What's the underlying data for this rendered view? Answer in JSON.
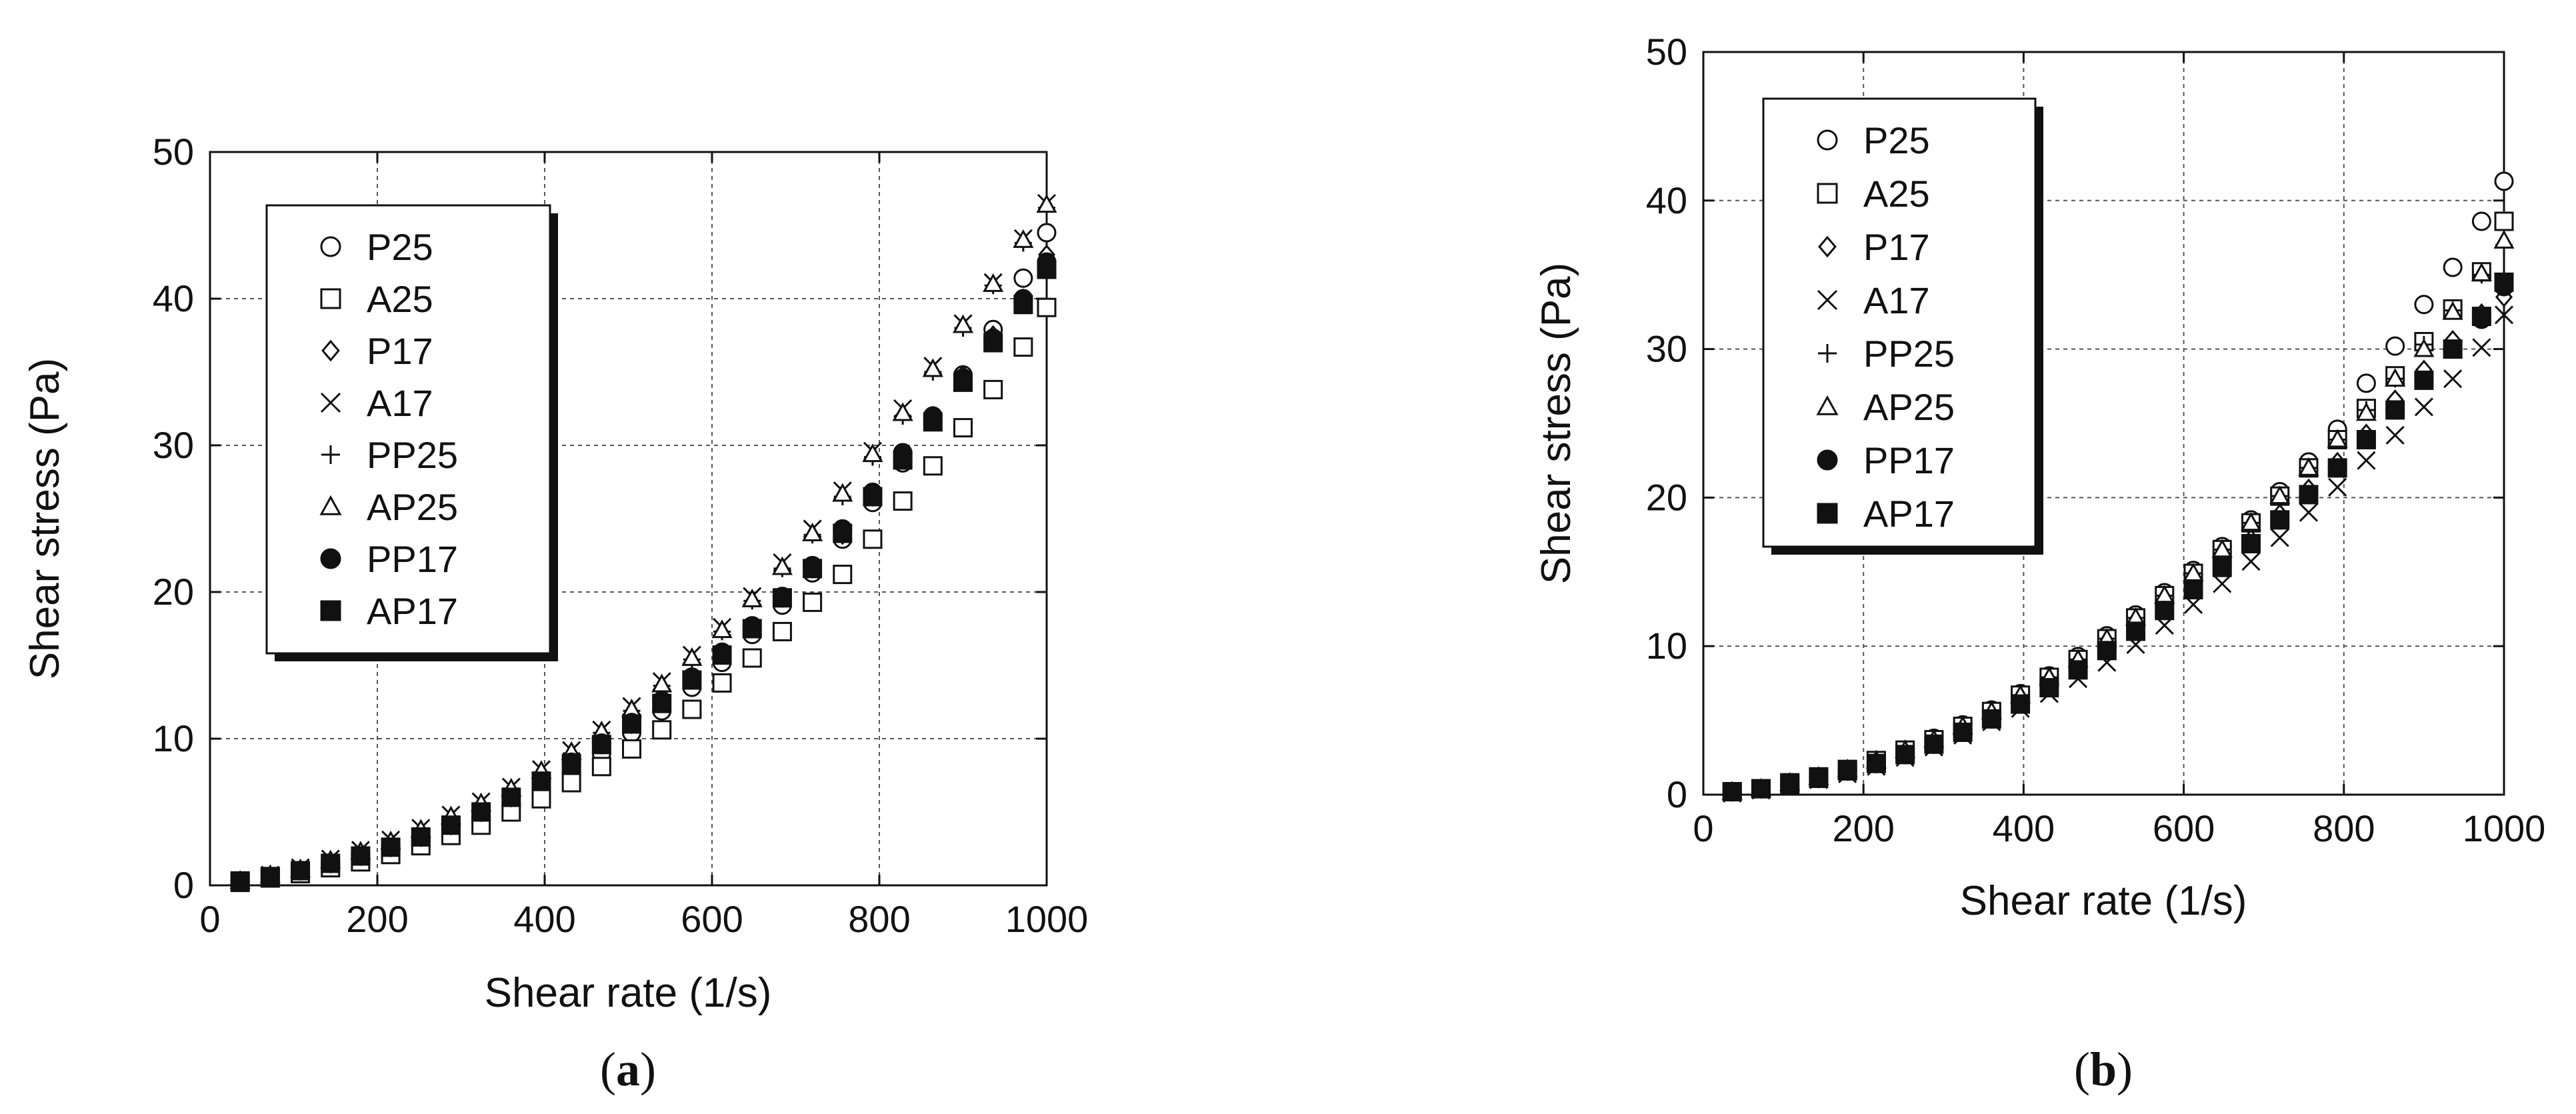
{
  "chart_data": [
    {
      "type": "scatter",
      "panel_label_open": "(",
      "panel_label_letter": "a",
      "panel_label_close": ")",
      "xlabel": "Shear rate (1/s)",
      "ylabel": "Shear stress (Pa)",
      "xlim": [
        0,
        1000
      ],
      "ylim": [
        0,
        50
      ],
      "xticks": [
        "0",
        "200",
        "400",
        "600",
        "800",
        "1000"
      ],
      "yticks": [
        "0",
        "10",
        "20",
        "30",
        "40",
        "50"
      ],
      "grid": true,
      "legend_position": "top-left",
      "x": [
        36,
        72,
        108,
        144,
        180,
        216,
        252,
        288,
        324,
        360,
        396,
        432,
        468,
        504,
        540,
        576,
        612,
        648,
        684,
        720,
        756,
        792,
        828,
        864,
        900,
        936,
        972,
        1000
      ],
      "series": [
        {
          "name": "P25",
          "marker": "circle-open",
          "values": [
            0.3,
            0.6,
            0.9,
            1.3,
            1.8,
            2.4,
            3.0,
            3.7,
            4.5,
            5.4,
            6.5,
            7.7,
            9.0,
            10.4,
            11.9,
            13.5,
            15.2,
            17.1,
            19.1,
            21.3,
            23.6,
            26.1,
            28.8,
            31.7,
            34.8,
            37.9,
            41.4,
            44.5
          ]
        },
        {
          "name": "A25",
          "marker": "square-open",
          "values": [
            0.2,
            0.5,
            0.8,
            1.2,
            1.6,
            2.1,
            2.7,
            3.4,
            4.1,
            5.0,
            5.9,
            7.0,
            8.1,
            9.3,
            10.6,
            12.0,
            13.8,
            15.5,
            17.3,
            19.3,
            21.2,
            23.6,
            26.2,
            28.6,
            31.2,
            33.8,
            36.7,
            39.4
          ]
        },
        {
          "name": "P17",
          "marker": "diamond-open",
          "values": [
            0.3,
            0.6,
            1.0,
            1.5,
            2.0,
            2.6,
            3.3,
            4.1,
            5.0,
            6.0,
            7.1,
            8.3,
            9.6,
            11.0,
            12.5,
            14.1,
            15.8,
            17.6,
            19.6,
            21.6,
            23.9,
            26.5,
            29.2,
            32.0,
            34.8,
            37.5,
            40.0,
            43.0
          ]
        },
        {
          "name": "A17",
          "marker": "cross",
          "values": [
            0.3,
            0.7,
            1.2,
            1.8,
            2.4,
            3.1,
            3.9,
            4.8,
            5.7,
            6.7,
            7.9,
            9.2,
            10.6,
            12.2,
            13.9,
            15.7,
            17.6,
            19.7,
            22.0,
            24.3,
            26.9,
            29.6,
            32.5,
            35.4,
            38.3,
            41.1,
            44.1,
            46.5
          ]
        },
        {
          "name": "PP25",
          "marker": "plus",
          "values": [
            0.3,
            0.7,
            1.1,
            1.7,
            2.3,
            3.0,
            3.8,
            4.7,
            5.6,
            6.6,
            7.7,
            9.0,
            10.4,
            11.9,
            13.6,
            15.4,
            17.3,
            19.4,
            21.6,
            23.9,
            26.5,
            29.2,
            32.0,
            35.0,
            38.0,
            40.9,
            43.8,
            46.2
          ]
        },
        {
          "name": "AP25",
          "marker": "triangle-open",
          "values": [
            0.3,
            0.7,
            1.1,
            1.7,
            2.3,
            3.0,
            3.8,
            4.7,
            5.6,
            6.6,
            7.8,
            9.1,
            10.5,
            12.0,
            13.7,
            15.5,
            17.4,
            19.5,
            21.7,
            24.0,
            26.7,
            29.4,
            32.2,
            35.2,
            38.2,
            41.0,
            44.0,
            46.4
          ]
        },
        {
          "name": "PP17",
          "marker": "circle-filled",
          "values": [
            0.3,
            0.6,
            1.0,
            1.5,
            2.0,
            2.6,
            3.3,
            4.1,
            5.0,
            6.0,
            7.1,
            8.4,
            9.7,
            11.1,
            12.6,
            14.2,
            15.9,
            17.7,
            19.7,
            21.8,
            24.3,
            26.8,
            29.5,
            32.0,
            34.6,
            37.3,
            40.0,
            42.5
          ]
        },
        {
          "name": "AP17",
          "marker": "square-filled",
          "values": [
            0.3,
            0.6,
            1.0,
            1.5,
            2.0,
            2.6,
            3.3,
            4.1,
            5.0,
            6.0,
            7.1,
            8.3,
            9.6,
            11.0,
            12.4,
            14.0,
            15.7,
            17.5,
            19.6,
            21.6,
            24.0,
            26.5,
            29.0,
            31.6,
            34.3,
            37.0,
            39.6,
            42.0
          ]
        }
      ]
    },
    {
      "type": "scatter",
      "panel_label_open": "(",
      "panel_label_letter": "b",
      "panel_label_close": ")",
      "xlabel": "Shear rate (1/s)",
      "ylabel": "Shear stress  (Pa)",
      "xlim": [
        0,
        1000
      ],
      "ylim": [
        0,
        50
      ],
      "xticks": [
        "0",
        "200",
        "400",
        "600",
        "800",
        "1000"
      ],
      "yticks": [
        "0",
        "10",
        "20",
        "30",
        "40",
        "50"
      ],
      "grid": true,
      "legend_position": "top-left",
      "x": [
        36,
        72,
        108,
        144,
        180,
        216,
        252,
        288,
        324,
        360,
        396,
        432,
        468,
        504,
        540,
        576,
        612,
        648,
        684,
        720,
        756,
        792,
        828,
        864,
        900,
        936,
        972,
        1000
      ],
      "series": [
        {
          "name": "P25",
          "marker": "circle-open",
          "values": [
            0.2,
            0.4,
            0.8,
            1.2,
            1.7,
            2.3,
            3.0,
            3.8,
            4.7,
            5.7,
            6.8,
            8.0,
            9.3,
            10.7,
            12.1,
            13.6,
            15.1,
            16.7,
            18.5,
            20.4,
            22.4,
            24.6,
            27.7,
            30.2,
            33.0,
            35.5,
            38.6,
            41.3
          ]
        },
        {
          "name": "A25",
          "marker": "square-open",
          "values": [
            0.2,
            0.4,
            0.8,
            1.2,
            1.7,
            2.3,
            3.0,
            3.7,
            4.6,
            5.6,
            6.7,
            7.9,
            9.1,
            10.5,
            11.9,
            13.4,
            14.9,
            16.5,
            18.3,
            20.1,
            22.0,
            23.9,
            26.0,
            28.2,
            30.5,
            32.7,
            35.2,
            38.6
          ]
        },
        {
          "name": "P17",
          "marker": "diamond-open",
          "values": [
            0.2,
            0.4,
            0.7,
            1.1,
            1.6,
            2.1,
            2.8,
            3.5,
            4.3,
            5.2,
            6.2,
            7.3,
            8.5,
            9.8,
            11.2,
            12.6,
            14.1,
            15.6,
            17.2,
            18.9,
            20.6,
            22.4,
            24.3,
            26.6,
            28.6,
            30.6,
            32.4,
            33.5
          ]
        },
        {
          "name": "A17",
          "marker": "cross",
          "values": [
            0.1,
            0.3,
            0.6,
            1.0,
            1.4,
            1.9,
            2.5,
            3.2,
            4.0,
            4.9,
            5.8,
            6.8,
            7.8,
            8.9,
            10.1,
            11.4,
            12.8,
            14.2,
            15.7,
            17.3,
            19.0,
            20.7,
            22.5,
            24.2,
            26.1,
            28.0,
            30.1,
            32.3
          ]
        },
        {
          "name": "PP25",
          "marker": "plus",
          "values": [
            0.2,
            0.4,
            0.8,
            1.2,
            1.7,
            2.3,
            3.0,
            3.7,
            4.6,
            5.6,
            6.7,
            7.9,
            9.1,
            10.5,
            11.9,
            13.4,
            14.9,
            16.5,
            18.3,
            20.1,
            22.0,
            23.9,
            25.9,
            28.0,
            30.3,
            32.6,
            35.0,
            37.0
          ]
        },
        {
          "name": "AP25",
          "marker": "triangle-open",
          "values": [
            0.2,
            0.4,
            0.8,
            1.2,
            1.7,
            2.3,
            3.0,
            3.7,
            4.6,
            5.6,
            6.7,
            7.9,
            9.1,
            10.5,
            11.9,
            13.4,
            14.9,
            16.5,
            18.3,
            20.1,
            22.0,
            23.9,
            25.7,
            28.0,
            30.0,
            32.5,
            35.1,
            37.3
          ]
        },
        {
          "name": "PP17",
          "marker": "circle-filled",
          "values": [
            0.2,
            0.4,
            0.7,
            1.1,
            1.6,
            2.1,
            2.7,
            3.4,
            4.2,
            5.1,
            6.1,
            7.2,
            8.4,
            9.7,
            11.0,
            12.4,
            13.8,
            15.3,
            16.9,
            18.5,
            20.2,
            22.0,
            23.9,
            25.9,
            27.9,
            30.0,
            32.0,
            34.2
          ]
        },
        {
          "name": "AP17",
          "marker": "square-filled",
          "values": [
            0.2,
            0.4,
            0.7,
            1.1,
            1.6,
            2.1,
            2.7,
            3.4,
            4.2,
            5.1,
            6.1,
            7.2,
            8.4,
            9.7,
            11.0,
            12.4,
            13.8,
            15.3,
            16.9,
            18.5,
            20.2,
            22.0,
            23.9,
            25.9,
            27.9,
            30.0,
            32.2,
            34.5
          ]
        }
      ]
    }
  ]
}
